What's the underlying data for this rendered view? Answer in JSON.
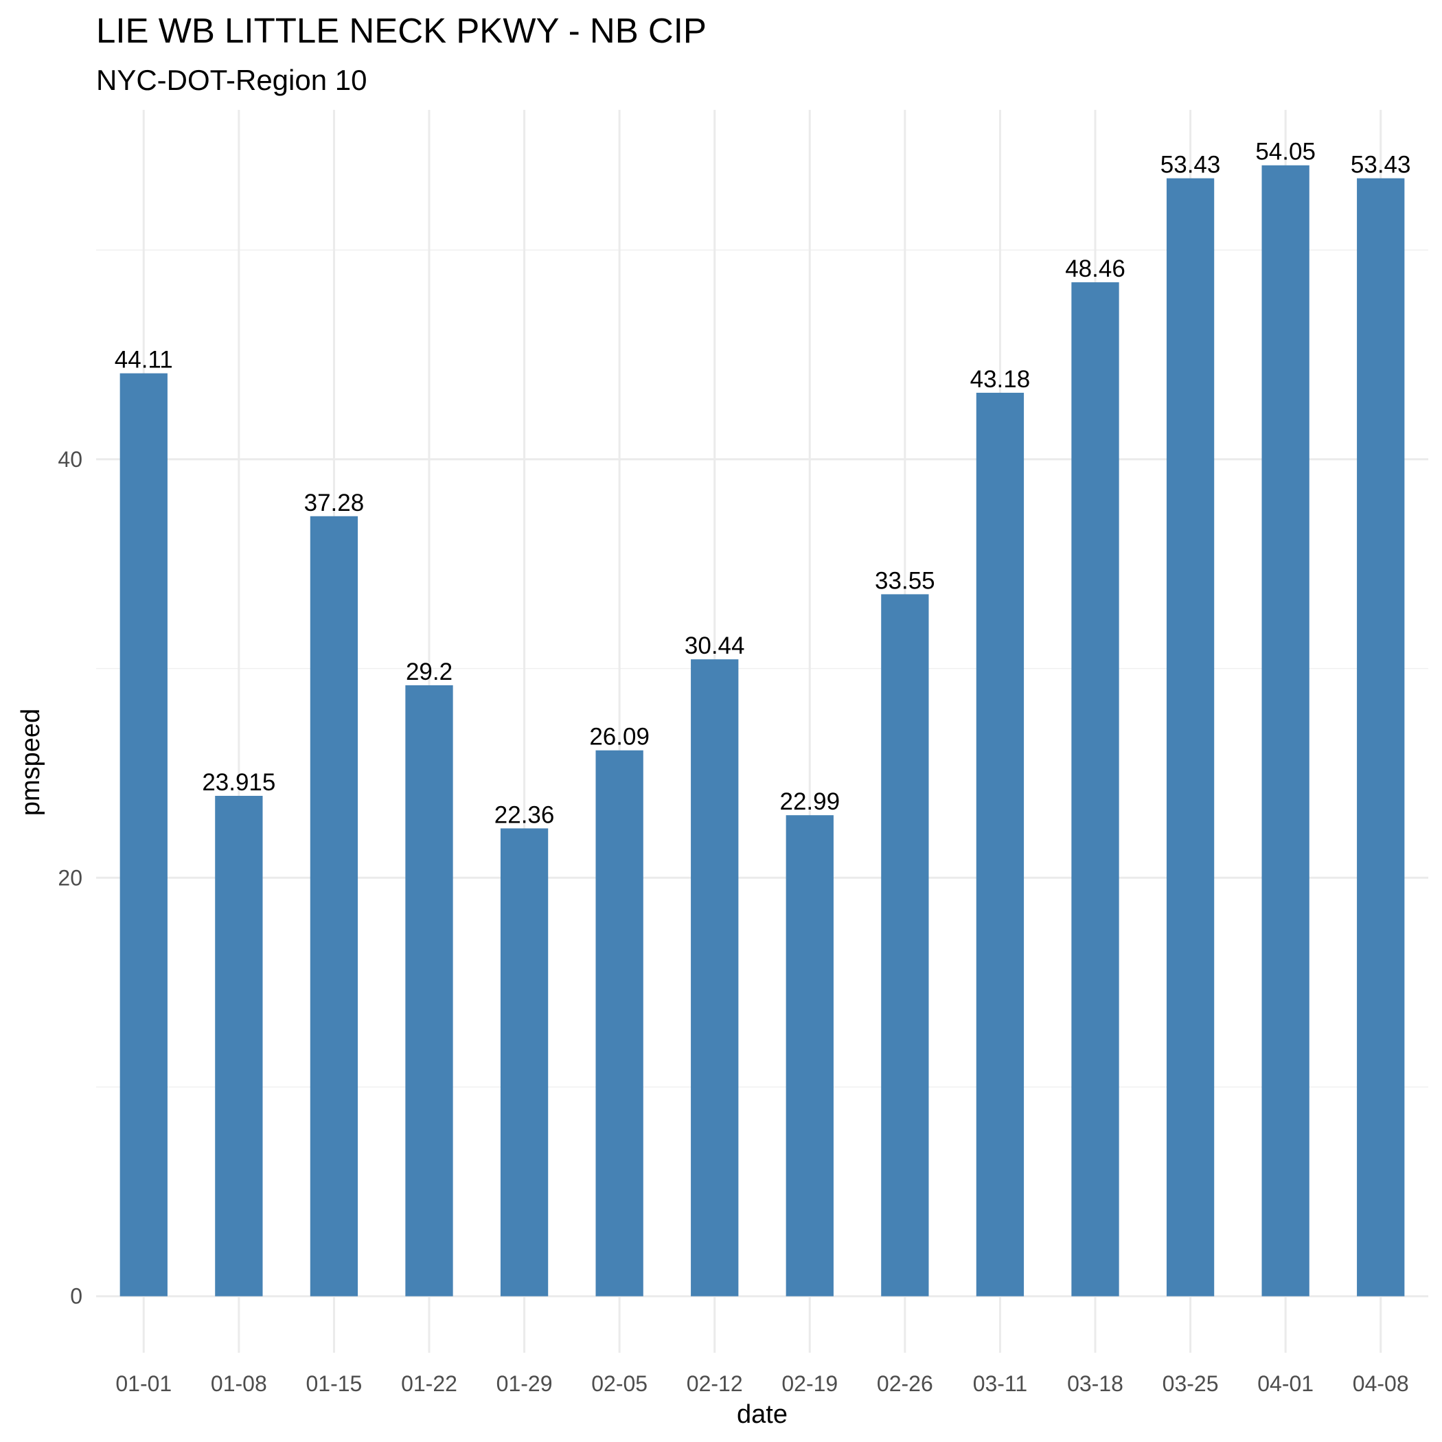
{
  "chart_data": {
    "type": "bar",
    "title": "LIE WB LITTLE NECK PKWY - NB CIP",
    "subtitle": "NYC-DOT-Region 10",
    "xlabel": "date",
    "ylabel": "pmspeed",
    "categories": [
      "01-01",
      "01-08",
      "01-15",
      "01-22",
      "01-29",
      "02-05",
      "02-12",
      "02-19",
      "02-26",
      "03-11",
      "03-18",
      "03-25",
      "04-01",
      "04-08"
    ],
    "values": [
      44.11,
      23.915,
      37.28,
      29.2,
      22.36,
      26.09,
      30.44,
      22.99,
      33.55,
      43.18,
      48.46,
      53.43,
      54.05,
      53.43
    ],
    "value_labels": [
      "44.11",
      "23.915",
      "37.28",
      "29.2",
      "22.36",
      "26.09",
      "30.44",
      "22.99",
      "33.55",
      "43.18",
      "48.46",
      "53.43",
      "54.05",
      "53.43"
    ],
    "y_ticks": [
      0,
      20,
      40
    ],
    "y_tick_labels": [
      "0",
      "20",
      "40"
    ],
    "y_minor_ticks": [
      10,
      30,
      50
    ],
    "ylim": [
      -2.7,
      56.7
    ],
    "bar_color": "#4682B4",
    "grid": true,
    "legend": "none"
  }
}
